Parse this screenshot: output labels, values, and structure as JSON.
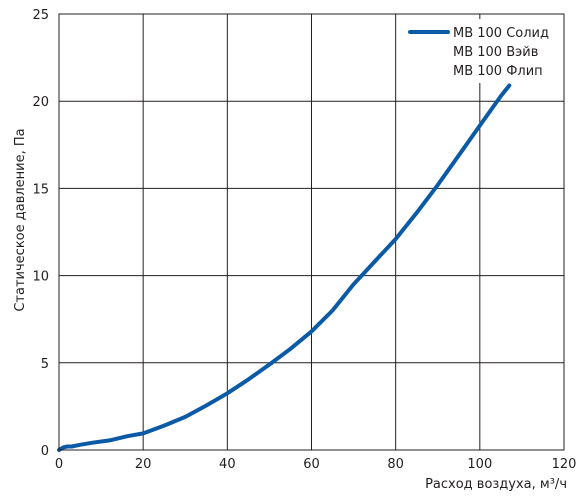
{
  "chart_data": {
    "type": "line",
    "xlabel": "Расход воздуха, м³/ч",
    "ylabel": "Статическое давление, Па",
    "xlim": [
      0,
      120
    ],
    "ylim": [
      0,
      25
    ],
    "x_ticks": [
      "0",
      "20",
      "40",
      "60",
      "80",
      "100",
      "120"
    ],
    "y_ticks": [
      "0",
      "5",
      "10",
      "15",
      "20",
      "25"
    ],
    "grid": true,
    "legend_position": "top-right",
    "legend": [
      "МВ 100 Солид",
      "МВ 100 Вэйв",
      "МВ 100 Флип"
    ],
    "series": [
      {
        "color": "#0b5aa5",
        "x": [
          0,
          1,
          2,
          3,
          5,
          8,
          12,
          16,
          20,
          25,
          30,
          35,
          40,
          45,
          50,
          55,
          60,
          65,
          70,
          75,
          80,
          85,
          90,
          95,
          100,
          105,
          107
        ],
        "y": [
          0,
          0.15,
          0.2,
          0.2,
          0.3,
          0.42,
          0.55,
          0.78,
          0.95,
          1.4,
          1.9,
          2.55,
          3.25,
          4.05,
          4.9,
          5.8,
          6.8,
          8.0,
          9.5,
          10.8,
          12.1,
          13.6,
          15.2,
          16.9,
          18.6,
          20.3,
          20.9
        ]
      }
    ]
  }
}
